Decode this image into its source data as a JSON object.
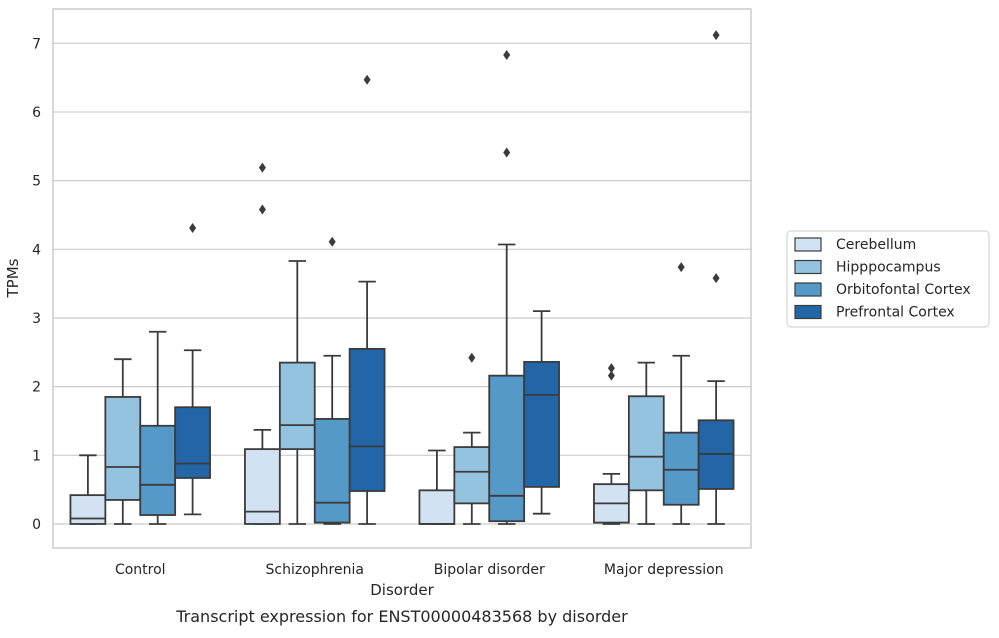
{
  "chart_data": {
    "type": "box",
    "caption": "Transcript expression for ENST00000483568 by disorder",
    "xlabel": "Disorder",
    "ylabel": "TPMs",
    "ylim": [
      -0.35,
      7.5
    ],
    "yticks": [
      0,
      1,
      2,
      3,
      4,
      5,
      6,
      7
    ],
    "grid": "horizontal",
    "legend_placement": "right",
    "categories": [
      "Control",
      "Schizophrenia",
      "Bipolar disorder",
      "Major depression"
    ],
    "series": [
      {
        "name": "Cerebellum",
        "color": "#d2e2f2",
        "boxes": [
          {
            "whislo": 0,
            "q1": 0,
            "med": 0.08,
            "q3": 0.42,
            "whishi": 1.0,
            "fliers": []
          },
          {
            "whislo": 0,
            "q1": 0,
            "med": 0.18,
            "q3": 1.09,
            "whishi": 1.37,
            "fliers": [
              4.58,
              5.19
            ]
          },
          {
            "whislo": 0,
            "q1": 0,
            "med": 0.0,
            "q3": 0.49,
            "whishi": 1.07,
            "fliers": []
          },
          {
            "whislo": 0,
            "q1": 0.02,
            "med": 0.3,
            "q3": 0.58,
            "whishi": 0.73,
            "fliers": [
              2.16,
              2.27
            ]
          }
        ]
      },
      {
        "name": "Hipppocampus",
        "color": "#94c3df",
        "boxes": [
          {
            "whislo": 0,
            "q1": 0.35,
            "med": 0.83,
            "q3": 1.85,
            "whishi": 2.4,
            "fliers": []
          },
          {
            "whislo": 0,
            "q1": 1.09,
            "med": 1.44,
            "q3": 2.35,
            "whishi": 3.83,
            "fliers": []
          },
          {
            "whislo": 0,
            "q1": 0.3,
            "med": 0.76,
            "q3": 1.12,
            "whishi": 1.33,
            "fliers": [
              2.42
            ]
          },
          {
            "whislo": 0,
            "q1": 0.49,
            "med": 0.98,
            "q3": 1.86,
            "whishi": 2.35,
            "fliers": []
          }
        ]
      },
      {
        "name": "Orbitofontal Cortex",
        "color": "#5499c8",
        "boxes": [
          {
            "whislo": 0,
            "q1": 0.13,
            "med": 0.57,
            "q3": 1.43,
            "whishi": 2.8,
            "fliers": []
          },
          {
            "whislo": 0,
            "q1": 0.02,
            "med": 0.31,
            "q3": 1.53,
            "whishi": 2.45,
            "fliers": [
              4.11
            ]
          },
          {
            "whislo": 0,
            "q1": 0.04,
            "med": 0.41,
            "q3": 2.16,
            "whishi": 4.07,
            "fliers": [
              5.41,
              6.83
            ]
          },
          {
            "whislo": 0,
            "q1": 0.28,
            "med": 0.79,
            "q3": 1.33,
            "whishi": 2.45,
            "fliers": [
              3.74
            ]
          }
        ]
      },
      {
        "name": "Prefrontal Cortex",
        "color": "#2266a8",
        "boxes": [
          {
            "whislo": 0.14,
            "q1": 0.67,
            "med": 0.88,
            "q3": 1.7,
            "whishi": 2.53,
            "fliers": [
              4.31
            ]
          },
          {
            "whislo": 0,
            "q1": 0.48,
            "med": 1.13,
            "q3": 2.55,
            "whishi": 3.53,
            "fliers": [
              6.47
            ]
          },
          {
            "whislo": 0.15,
            "q1": 0.54,
            "med": 1.88,
            "q3": 2.36,
            "whishi": 3.1,
            "fliers": []
          },
          {
            "whislo": 0,
            "q1": 0.51,
            "med": 1.02,
            "q3": 1.51,
            "whishi": 2.08,
            "fliers": [
              3.58,
              7.12
            ]
          }
        ]
      }
    ]
  }
}
